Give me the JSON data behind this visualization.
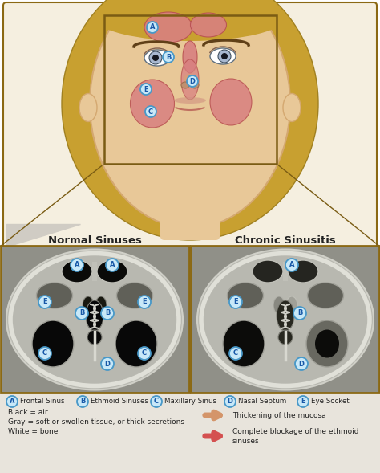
{
  "bg_color": "#e8e4dc",
  "face_bg": "#f5efe0",
  "face_border": "#8b6914",
  "inner_box_color": "#7a5c14",
  "normal_title": "Normal Sinuses",
  "chronic_title": "Chronic Sinusitis",
  "legend_labels": [
    {
      "letter": "A",
      "text": "Frontal Sinus"
    },
    {
      "letter": "B",
      "text": "Ethmoid Sinuses"
    },
    {
      "letter": "C",
      "text": "Maxillary Sinus"
    },
    {
      "letter": "D",
      "text": "Nasal Septum"
    },
    {
      "letter": "E",
      "text": "Eye Socket"
    }
  ],
  "black_gray_legend": [
    "Black = air",
    "Gray = soft or swollen tissue, or thick secretions",
    "White = bone"
  ],
  "arrow_legend": [
    {
      "color": "#d4956a",
      "text": "Thickening of the mucosa"
    },
    {
      "color": "#d45050",
      "text": "Complete blockage of the ethmoid\nsinuses"
    }
  ],
  "skin_color": "#e8c898",
  "skin_shadow": "#d4a870",
  "hair_color": "#c8a030",
  "sinus_color": "#d88080",
  "sinus_edge": "#b85050",
  "eye_color": "#a8b8d0",
  "eye_dark": "#404858",
  "ct_bone": "#c8c8c0",
  "ct_air": "#101010",
  "ct_tissue": "#787870",
  "ct_bg": "#909088",
  "circle_fill": "#c8e8f8",
  "circle_edge": "#4898c8",
  "circle_text": "#1858a8",
  "panel_border": "#8b6914",
  "title_color": "#222222",
  "legend_bg": "#e8e4dc"
}
